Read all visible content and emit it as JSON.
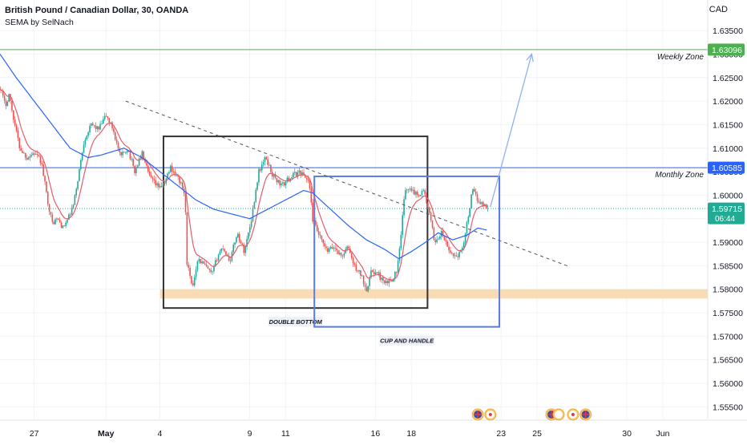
{
  "header": {
    "title": "British Pound / Canadian Dollar, 30, OANDA",
    "indicator": "SEMA by SelNach",
    "currency": "CAD"
  },
  "chart_data": {
    "type": "candlestick",
    "y_ticks": [
      "1.63500",
      "1.63000",
      "1.62500",
      "1.62000",
      "1.61500",
      "1.61000",
      "1.60500",
      "1.60000",
      "1.59500",
      "1.59000",
      "1.58500",
      "1.58000",
      "1.57500",
      "1.57000",
      "1.56500",
      "1.56000",
      "1.55500"
    ],
    "y_tick_values": [
      1.635,
      1.63,
      1.625,
      1.62,
      1.615,
      1.61,
      1.605,
      1.6,
      1.595,
      1.59,
      1.585,
      1.58,
      1.575,
      1.57,
      1.565,
      1.56,
      1.555
    ],
    "ylim": [
      1.5525,
      1.6415
    ],
    "x_ticks": [
      {
        "label": "27",
        "day": -3.5,
        "bold": false
      },
      {
        "label": "May",
        "day": 0.5,
        "bold": true
      },
      {
        "label": "4",
        "day": 3.5,
        "bold": false
      },
      {
        "label": "9",
        "day": 8.5,
        "bold": false
      },
      {
        "label": "11",
        "day": 10.5,
        "bold": false
      },
      {
        "label": "16",
        "day": 15.5,
        "bold": false
      },
      {
        "label": "18",
        "day": 17.5,
        "bold": false
      },
      {
        "label": "23",
        "day": 22.5,
        "bold": false
      },
      {
        "label": "25",
        "day": 24.5,
        "bold": false
      },
      {
        "label": "30",
        "day": 29.5,
        "bold": false
      },
      {
        "label": "Jun",
        "day": 31.5,
        "bold": false
      }
    ],
    "xlim_days": [
      -5.4,
      34.0
    ],
    "price_keypoints": [
      [
        -5.4,
        1.623
      ],
      [
        -5.1,
        1.619
      ],
      [
        -4.9,
        1.6215
      ],
      [
        -4.6,
        1.6155
      ],
      [
        -4.3,
        1.61
      ],
      [
        -3.9,
        1.608
      ],
      [
        -3.5,
        1.609
      ],
      [
        -3.1,
        1.607
      ],
      [
        -2.8,
        1.6
      ],
      [
        -2.5,
        1.594
      ],
      [
        -2.2,
        1.595
      ],
      [
        -1.9,
        1.593
      ],
      [
        -1.6,
        1.595
      ],
      [
        -1.3,
        1.598
      ],
      [
        -1.0,
        1.605
      ],
      [
        -0.7,
        1.612
      ],
      [
        -0.3,
        1.615
      ],
      [
        0.1,
        1.614
      ],
      [
        0.5,
        1.617
      ],
      [
        0.9,
        1.614
      ],
      [
        1.3,
        1.608
      ],
      [
        1.7,
        1.61
      ],
      [
        2.1,
        1.605
      ],
      [
        2.5,
        1.609
      ],
      [
        2.9,
        1.604
      ],
      [
        3.3,
        1.602
      ],
      [
        3.7,
        1.602
      ],
      [
        4.1,
        1.606
      ],
      [
        4.6,
        1.603
      ],
      [
        4.9,
        1.6
      ],
      [
        5.0,
        1.586
      ],
      [
        5.3,
        1.58
      ],
      [
        5.6,
        1.5865
      ],
      [
        6.0,
        1.585
      ],
      [
        6.4,
        1.583
      ],
      [
        6.7,
        1.587
      ],
      [
        7.0,
        1.589
      ],
      [
        7.4,
        1.586
      ],
      [
        7.8,
        1.592
      ],
      [
        8.2,
        1.588
      ],
      [
        8.6,
        1.595
      ],
      [
        9.0,
        1.605
      ],
      [
        9.4,
        1.608
      ],
      [
        9.8,
        1.604
      ],
      [
        10.3,
        1.602
      ],
      [
        10.8,
        1.604
      ],
      [
        11.3,
        1.605
      ],
      [
        11.8,
        1.603
      ],
      [
        12.0,
        1.595
      ],
      [
        12.4,
        1.591
      ],
      [
        12.8,
        1.588
      ],
      [
        13.2,
        1.589
      ],
      [
        13.6,
        1.587
      ],
      [
        14.0,
        1.589
      ],
      [
        14.3,
        1.585
      ],
      [
        14.7,
        1.583
      ],
      [
        15.0,
        1.58
      ],
      [
        15.3,
        1.584
      ],
      [
        15.7,
        1.583
      ],
      [
        16.0,
        1.581
      ],
      [
        16.4,
        1.582
      ],
      [
        16.7,
        1.584
      ],
      [
        16.9,
        1.59
      ],
      [
        17.1,
        1.6
      ],
      [
        17.4,
        1.602
      ],
      [
        17.8,
        1.6
      ],
      [
        18.2,
        1.601
      ],
      [
        18.5,
        1.596
      ],
      [
        18.8,
        1.59
      ],
      [
        19.2,
        1.592
      ],
      [
        19.6,
        1.588
      ],
      [
        20.0,
        1.587
      ],
      [
        20.3,
        1.588
      ],
      [
        20.6,
        1.594
      ],
      [
        20.9,
        1.601
      ],
      [
        21.2,
        1.599
      ],
      [
        21.5,
        1.598
      ],
      [
        21.8,
        1.5972
      ]
    ],
    "ema_keypoints": [
      [
        -5.4,
        1.63
      ],
      [
        -4.5,
        1.625
      ],
      [
        -3.5,
        1.62
      ],
      [
        -2.5,
        1.615
      ],
      [
        -1.5,
        1.61
      ],
      [
        -0.5,
        1.608
      ],
      [
        0.2,
        1.6085
      ],
      [
        1.5,
        1.61
      ],
      [
        2.5,
        1.608
      ],
      [
        3.5,
        1.605
      ],
      [
        4.5,
        1.602
      ],
      [
        5.5,
        1.599
      ],
      [
        6.5,
        1.597
      ],
      [
        7.5,
        1.596
      ],
      [
        8.5,
        1.595
      ],
      [
        9.5,
        1.597
      ],
      [
        10.5,
        1.599
      ],
      [
        11.5,
        1.601
      ],
      [
        12.0,
        1.6005
      ],
      [
        13.0,
        1.597
      ],
      [
        14.0,
        1.5935
      ],
      [
        15.0,
        1.5905
      ],
      [
        16.0,
        1.5885
      ],
      [
        16.8,
        1.5865
      ],
      [
        17.5,
        1.588
      ],
      [
        18.3,
        1.59
      ],
      [
        19.0,
        1.592
      ],
      [
        19.8,
        1.5905
      ],
      [
        20.6,
        1.5915
      ],
      [
        21.2,
        1.593
      ],
      [
        21.8,
        1.5925
      ]
    ],
    "levels": [
      {
        "name": "weekly",
        "price": 1.63096,
        "badge": "1.63096",
        "label": "Weekly Zone",
        "color": "#4caf50"
      },
      {
        "name": "monthly",
        "price": 1.60585,
        "badge": "1.60585",
        "label": "Monthly Zone",
        "color": "#2962ff"
      }
    ],
    "current_price": {
      "price": 1.59715,
      "badge": "1.59715",
      "countdown": "06:44",
      "color": "#22ab94"
    },
    "support_zone": {
      "price_top": 1.58,
      "price_bottom": 1.578,
      "color": "#f8d8ab"
    },
    "trendline": {
      "start": [
        1.6,
        1.62
      ],
      "end": [
        26.3,
        1.5848
      ],
      "color": "#555555"
    },
    "projection": {
      "start": [
        21.9,
        1.5975
      ],
      "end": [
        24.2,
        1.63
      ],
      "color": "#90b0f0"
    },
    "boxes": [
      {
        "name": "double-bottom",
        "day_start": 3.7,
        "day_end": 18.4,
        "price_top": 1.6125,
        "price_bottom": 1.576,
        "color": "#333333",
        "label": "DOUBLE BOTTOM"
      },
      {
        "name": "cup-and-handle",
        "day_start": 12.1,
        "day_end": 22.4,
        "price_top": 1.604,
        "price_bottom": 1.572,
        "color": "#5b7be8",
        "label": "CUP AND HANDLE"
      }
    ],
    "events": [
      {
        "day": 21.2,
        "kind": "gb"
      },
      {
        "day": 21.9,
        "kind": "ca"
      },
      {
        "day": 25.3,
        "kind": "gb"
      },
      {
        "day": 25.7,
        "kind": "blank"
      },
      {
        "day": 26.5,
        "kind": "ca"
      },
      {
        "day": 27.2,
        "kind": "gb"
      }
    ],
    "colors": {
      "up": "#26a69a",
      "down": "#ef5350",
      "ema": "#2962ff",
      "fast_ma": "#e35d6a",
      "grid": "#f0f3fa"
    }
  }
}
